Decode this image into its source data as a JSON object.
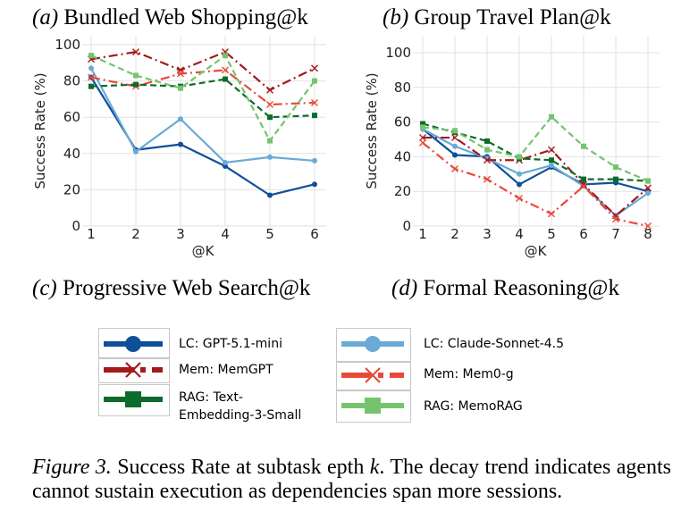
{
  "panels": [
    {
      "tag": "(a)",
      "name": "Bundled Web Shopping@k"
    },
    {
      "tag": "(b)",
      "name": "Group Travel Plan@k"
    },
    {
      "tag": "(c)",
      "name": "Progressive Web Search@k"
    },
    {
      "tag": "(d)",
      "name": "Formal Reasoning@k"
    }
  ],
  "legend": [
    {
      "label": "LC: GPT-5.1-mini",
      "color": "#0f4f99",
      "style": "solid-circle"
    },
    {
      "label": "LC: Claude-Sonnet-4.5",
      "color": "#6aaad6",
      "style": "solid-circle"
    },
    {
      "label": "Mem: MemGPT",
      "color": "#a31a1c",
      "style": "dashdot-x"
    },
    {
      "label": "Mem: Mem0-g",
      "color": "#e84a3a",
      "style": "dashdot-x"
    },
    {
      "label": "RAG: Text-Embedding-3-Small",
      "label_line1": "RAG: Text-",
      "label_line2": "Embedding-3-Small",
      "color": "#0d6b2b",
      "style": "dashed-square"
    },
    {
      "label": "RAG: MemoRAG",
      "color": "#74c46e",
      "style": "dashed-square"
    }
  ],
  "caption": {
    "figure": "Figure 3.",
    "text_before": "Success Rate at subtask epth",
    "variable": "k",
    "text_after": ". The decay trend indicates agents cannot sustain execution as dependencies span more sessions."
  },
  "chart_data": [
    {
      "type": "line",
      "title": "(a) Bundled Web Shopping@k",
      "xlabel": "@K",
      "ylabel": "Success Rate (%)",
      "x": [
        1,
        2,
        3,
        4,
        5,
        6
      ],
      "ylim": [
        0,
        100
      ],
      "yticks": [
        0,
        20,
        40,
        60,
        80,
        100
      ],
      "grid": true,
      "series": [
        {
          "name": "LC: GPT-5.1-mini",
          "values": [
            82,
            42,
            45,
            33,
            17,
            23
          ]
        },
        {
          "name": "LC: Claude-Sonnet-4.5",
          "values": [
            87,
            41,
            59,
            35,
            38,
            36
          ]
        },
        {
          "name": "Mem: MemGPT",
          "values": [
            92,
            96,
            86,
            96,
            75,
            87
          ]
        },
        {
          "name": "Mem: Mem0-g",
          "values": [
            82,
            77,
            84,
            86,
            67,
            68
          ]
        },
        {
          "name": "RAG: Text-Embedding-3-Small",
          "values": [
            77,
            78,
            77,
            81,
            60,
            61
          ]
        },
        {
          "name": "RAG: MemoRAG",
          "values": [
            94,
            83,
            76,
            94,
            47,
            80
          ]
        }
      ]
    },
    {
      "type": "line",
      "title": "(b) Group Travel Plan@k",
      "xlabel": "@K",
      "ylabel": "Success Rate (%)",
      "x": [
        1,
        2,
        3,
        4,
        5,
        6,
        7,
        8
      ],
      "ylim": [
        0,
        100
      ],
      "yticks": [
        0,
        20,
        40,
        60,
        80,
        100
      ],
      "grid": true,
      "series": [
        {
          "name": "LC: GPT-5.1-mini",
          "values": [
            56,
            41,
            40,
            24,
            34,
            24,
            25,
            20
          ]
        },
        {
          "name": "LC: Claude-Sonnet-4.5",
          "values": [
            56,
            46,
            39,
            30,
            35,
            23,
            6,
            19
          ]
        },
        {
          "name": "Mem: MemGPT",
          "values": [
            51,
            51,
            38,
            38,
            44,
            24,
            6,
            22
          ]
        },
        {
          "name": "Mem: Mem0-g",
          "values": [
            48,
            33,
            27,
            16,
            7,
            23,
            4,
            0
          ]
        },
        {
          "name": "RAG: Text-Embedding-3-Small",
          "values": [
            59,
            54,
            49,
            39,
            38,
            27,
            27,
            26
          ]
        },
        {
          "name": "RAG: MemoRAG",
          "values": [
            57,
            55,
            44,
            40,
            63,
            46,
            34,
            26
          ]
        }
      ]
    }
  ]
}
